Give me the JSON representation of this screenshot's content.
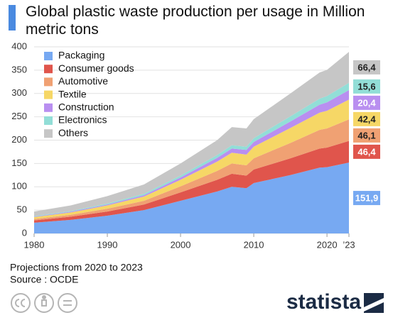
{
  "chart_data": {
    "type": "stacked-area",
    "title": "Global plastic waste production per usage in Million metric tons",
    "note": "Projections from 2020 to 2023",
    "source": "Source : OCDE",
    "brand": "statista",
    "x": [
      1980,
      1985,
      1990,
      1995,
      2000,
      2005,
      2007,
      2009,
      2010,
      2015,
      2019,
      2020,
      2023
    ],
    "xlim": [
      1980,
      2023
    ],
    "xticks": [
      1980,
      1990,
      2000,
      2010,
      2020,
      {
        "value": 2023,
        "label": "’23"
      }
    ],
    "ylim": [
      0,
      400
    ],
    "yticks": [
      0,
      50,
      100,
      150,
      200,
      250,
      300,
      350,
      400
    ],
    "grid": true,
    "legend": "top-left",
    "series": [
      {
        "name": "Packaging",
        "color": "#77a9f2",
        "values": [
          23,
          29,
          38,
          50,
          70,
          90,
          100,
          97,
          108,
          125,
          141,
          142,
          151.9
        ],
        "value_labels": [
          null,
          null,
          null,
          null,
          null,
          null,
          null,
          null,
          null,
          null,
          null,
          null,
          "151,9"
        ]
      },
      {
        "name": "Consumer goods",
        "color": "#e0554c",
        "values": [
          5,
          7,
          9,
          12,
          18,
          25,
          28,
          27,
          29,
          36,
          41,
          42,
          46.4
        ],
        "value_labels": [
          null,
          null,
          null,
          null,
          null,
          null,
          null,
          null,
          null,
          null,
          null,
          null,
          "46,4"
        ]
      },
      {
        "name": "Automotive",
        "color": "#f0a173",
        "values": [
          3,
          4,
          6,
          8,
          13,
          19,
          22,
          22,
          24,
          33,
          40,
          41,
          46.1
        ],
        "value_labels": [
          null,
          null,
          null,
          null,
          null,
          null,
          null,
          null,
          null,
          null,
          null,
          null,
          "46,1"
        ]
      },
      {
        "name": "Textile",
        "color": "#f6d766",
        "values": [
          4,
          5,
          7,
          9,
          14,
          20,
          23,
          23,
          25,
          32,
          37,
          38,
          42.4
        ],
        "value_labels": [
          null,
          null,
          null,
          null,
          null,
          null,
          null,
          null,
          null,
          null,
          null,
          null,
          "42,4"
        ]
      },
      {
        "name": "Construction",
        "color": "#b98ff0",
        "values": [
          1,
          1.5,
          2,
          3,
          5,
          8,
          9,
          10,
          10,
          14,
          17,
          18,
          20.4
        ],
        "value_labels": [
          null,
          null,
          null,
          null,
          null,
          null,
          null,
          null,
          null,
          null,
          null,
          null,
          "20,4"
        ]
      },
      {
        "name": "Electronics",
        "color": "#92ded7",
        "values": [
          1,
          1.5,
          2,
          3,
          4,
          6,
          7,
          7,
          8,
          11,
          13,
          13.5,
          15.6
        ],
        "value_labels": [
          null,
          null,
          null,
          null,
          null,
          null,
          null,
          null,
          null,
          null,
          null,
          null,
          "15,6"
        ]
      },
      {
        "name": "Others",
        "color": "#c6c6c6",
        "values": [
          10,
          12,
          16,
          20,
          26,
          32,
          39,
          39,
          41,
          49,
          56,
          56,
          66.4
        ],
        "value_labels": [
          null,
          null,
          null,
          null,
          null,
          null,
          null,
          null,
          null,
          null,
          null,
          null,
          "66,4"
        ]
      }
    ]
  }
}
